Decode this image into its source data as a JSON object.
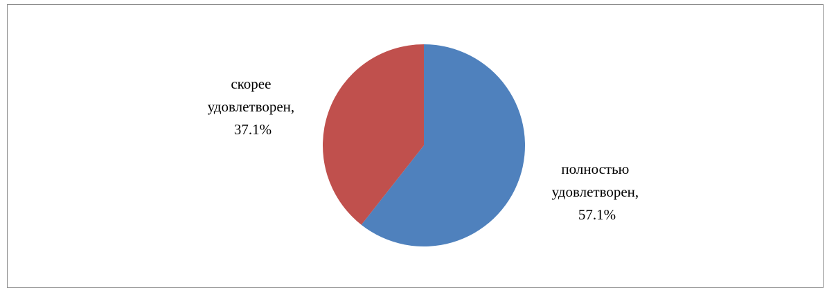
{
  "chart_data": {
    "type": "pie",
    "title": "",
    "slices": [
      {
        "lines": [
          "полностью",
          "удовлетворен,",
          "57.1%"
        ],
        "value": 57.1,
        "color": "#4F81BD"
      },
      {
        "lines": [
          "скорее",
          "удовлетворен,",
          "37.1%"
        ],
        "value": 37.1,
        "color": "#C0504D"
      }
    ],
    "legend": "none"
  }
}
